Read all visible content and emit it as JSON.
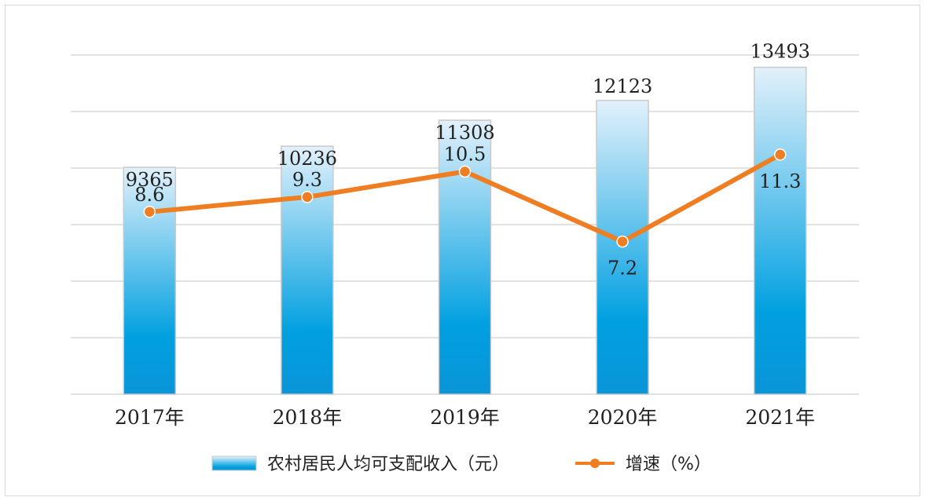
{
  "chart_data": {
    "type": "bar+line",
    "categories": [
      "2017年",
      "2018年",
      "2019年",
      "2020年",
      "2021年"
    ],
    "series": [
      {
        "name": "农村居民人均可支配收入（元）",
        "type": "bar",
        "values": [
          9365,
          10236,
          11308,
          12123,
          13493
        ]
      },
      {
        "name": "增速（%）",
        "type": "line",
        "values": [
          8.6,
          9.3,
          10.5,
          7.2,
          11.3
        ]
      }
    ],
    "bar_axis_range": [
      0,
      14000
    ],
    "line_axis_range": [
      0,
      16
    ],
    "grid": true,
    "legend_placement": "bottom-center",
    "colors": {
      "bar_top": "#e3f1fb",
      "bar_bottom": "#0a95d8",
      "bar_border": "#c9c9c9",
      "line": "#ef7d22",
      "grid": "#d9d9d9"
    }
  }
}
